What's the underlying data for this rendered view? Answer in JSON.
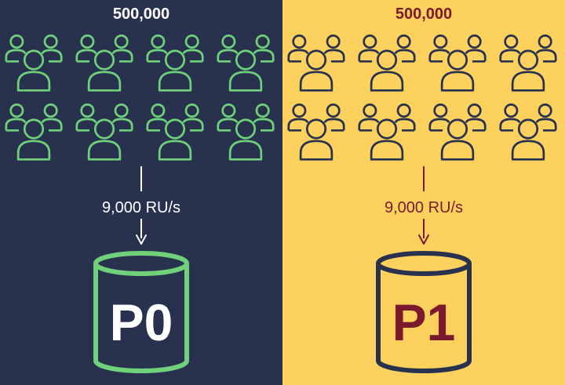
{
  "partitions": [
    {
      "id": "P0",
      "user_count": "500,000",
      "throughput": "9,000 RU/s",
      "background": "#28324f",
      "user_icon_color": "#6fd17a",
      "text_color": "#ffffff",
      "cylinder_stroke": "#6fd17a",
      "cylinder_fill": "#28324f",
      "arrow_color": "#ffffff"
    },
    {
      "id": "P1",
      "user_count": "500,000",
      "throughput": "9,000 RU/s",
      "background": "#fdd15e",
      "user_icon_color": "#28324f",
      "text_color": "#7b1a2d",
      "cylinder_stroke": "#28324f",
      "cylinder_fill": "#fdd15e",
      "arrow_color": "#7b1a2d"
    }
  ],
  "icons": {
    "user_group": "users-group-icon",
    "database": "database-cylinder-icon"
  },
  "user_groups_per_panel": 8
}
